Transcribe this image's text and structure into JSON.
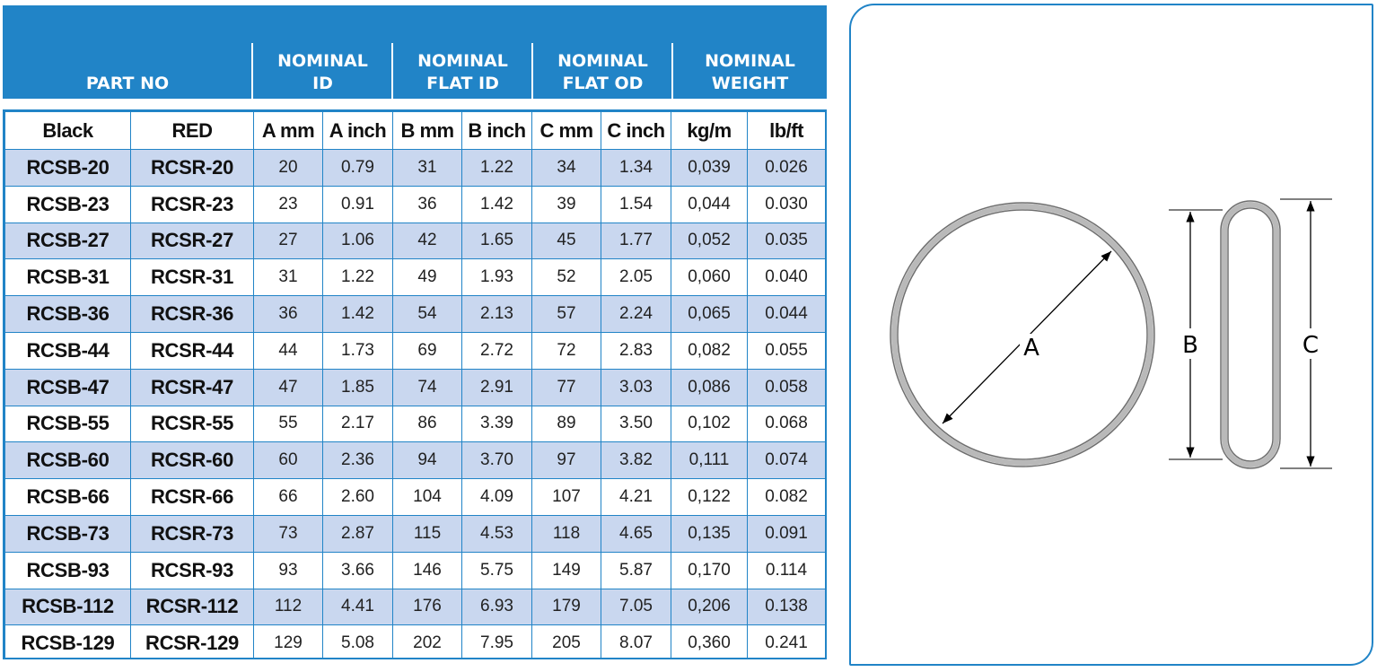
{
  "header": {
    "part_no": "PART NO",
    "nominal_id": [
      "NOMINAL",
      "ID"
    ],
    "nominal_flat_id": [
      "NOMINAL",
      "FLAT ID"
    ],
    "nominal_flat_od": [
      "NOMINAL",
      "FLAT OD"
    ],
    "nominal_weight": [
      "NOMINAL",
      "WEIGHT"
    ]
  },
  "columns": [
    "Black",
    "RED",
    "A mm",
    "A inch",
    "B mm",
    "B inch",
    "C mm",
    "C inch",
    "kg/m",
    "lb/ft"
  ],
  "rows": [
    [
      "RCSB-20",
      "RCSR-20",
      "20",
      "0.79",
      "31",
      "1.22",
      "34",
      "1.34",
      "0,039",
      "0.026"
    ],
    [
      "RCSB-23",
      "RCSR-23",
      "23",
      "0.91",
      "36",
      "1.42",
      "39",
      "1.54",
      "0,044",
      "0.030"
    ],
    [
      "RCSB-27",
      "RCSR-27",
      "27",
      "1.06",
      "42",
      "1.65",
      "45",
      "1.77",
      "0,052",
      "0.035"
    ],
    [
      "RCSB-31",
      "RCSR-31",
      "31",
      "1.22",
      "49",
      "1.93",
      "52",
      "2.05",
      "0,060",
      "0.040"
    ],
    [
      "RCSB-36",
      "RCSR-36",
      "36",
      "1.42",
      "54",
      "2.13",
      "57",
      "2.24",
      "0,065",
      "0.044"
    ],
    [
      "RCSB-44",
      "RCSR-44",
      "44",
      "1.73",
      "69",
      "2.72",
      "72",
      "2.83",
      "0,082",
      "0.055"
    ],
    [
      "RCSB-47",
      "RCSR-47",
      "47",
      "1.85",
      "74",
      "2.91",
      "77",
      "3.03",
      "0,086",
      "0.058"
    ],
    [
      "RCSB-55",
      "RCSR-55",
      "55",
      "2.17",
      "86",
      "3.39",
      "89",
      "3.50",
      "0,102",
      "0.068"
    ],
    [
      "RCSB-60",
      "RCSR-60",
      "60",
      "2.36",
      "94",
      "3.70",
      "97",
      "3.82",
      "0,111",
      "0.074"
    ],
    [
      "RCSB-66",
      "RCSR-66",
      "66",
      "2.60",
      "104",
      "4.09",
      "107",
      "4.21",
      "0,122",
      "0.082"
    ],
    [
      "RCSB-73",
      "RCSR-73",
      "73",
      "2.87",
      "115",
      "4.53",
      "118",
      "4.65",
      "0,135",
      "0.091"
    ],
    [
      "RCSB-93",
      "RCSR-93",
      "93",
      "3.66",
      "146",
      "5.75",
      "149",
      "5.87",
      "0,170",
      "0.114"
    ],
    [
      "RCSB-112",
      "RCSR-112",
      "112",
      "4.41",
      "176",
      "6.93",
      "179",
      "7.05",
      "0,206",
      "0.138"
    ],
    [
      "RCSB-129",
      "RCSR-129",
      "129",
      "5.08",
      "202",
      "7.95",
      "205",
      "8.07",
      "0,360",
      "0.241"
    ]
  ],
  "diagram": {
    "label_a": "A",
    "label_b": "B",
    "label_c": "C"
  },
  "colors": {
    "header_bg": "#2184c7",
    "row_shade": "#c9d7ef",
    "ring": "#8a8a8a"
  }
}
